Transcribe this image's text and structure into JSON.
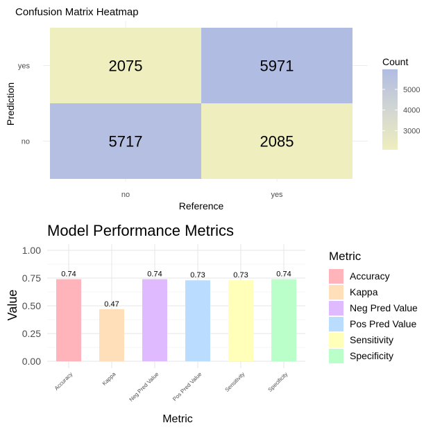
{
  "chart_data": [
    {
      "type": "heatmap",
      "title": "Confusion Matrix Heatmap",
      "xlabel": "Reference",
      "ylabel": "Prediction",
      "x_categories": [
        "no",
        "yes"
      ],
      "y_categories": [
        "no",
        "yes"
      ],
      "cells": [
        {
          "x": "no",
          "y": "yes",
          "value": 2075
        },
        {
          "x": "yes",
          "y": "yes",
          "value": 5971
        },
        {
          "x": "no",
          "y": "no",
          "value": 5717
        },
        {
          "x": "yes",
          "y": "no",
          "value": 2085
        }
      ],
      "legend": {
        "title": "Count",
        "ticks": [
          3000,
          4000,
          5000
        ],
        "tick_labels": [
          "3000",
          "4000",
          "5000"
        ],
        "range": [
          2075,
          5971
        ],
        "low_color": "#efeebe",
        "high_color": "#b1bce3"
      },
      "grid": true,
      "legend_position": "right"
    },
    {
      "type": "bar",
      "title": "Model Performance Metrics",
      "xlabel": "Metric",
      "ylabel": "Value",
      "categories": [
        "Accuracy",
        "Kappa",
        "Neg Pred Value",
        "Pos Pred Value",
        "Sensitivity",
        "Specificity"
      ],
      "values": [
        0.74,
        0.47,
        0.74,
        0.73,
        0.73,
        0.74
      ],
      "value_labels": [
        "0.74",
        "0.47",
        "0.74",
        "0.73",
        "0.73",
        "0.74"
      ],
      "colors": [
        "#ffb3ba",
        "#ffdfba",
        "#e0baff",
        "#baddff",
        "#ffffba",
        "#baffc9"
      ],
      "ylim": [
        0,
        1
      ],
      "yticks": [
        0,
        0.25,
        0.5,
        0.75,
        1.0
      ],
      "ytick_labels": [
        "0.00",
        "0.25",
        "0.50",
        "0.75",
        "1.00"
      ],
      "legend": {
        "title": "Metric",
        "entries": [
          "Accuracy",
          "Kappa",
          "Neg Pred Value",
          "Pos Pred Value",
          "Sensitivity",
          "Specificity"
        ]
      },
      "grid": true,
      "legend_position": "right"
    }
  ]
}
